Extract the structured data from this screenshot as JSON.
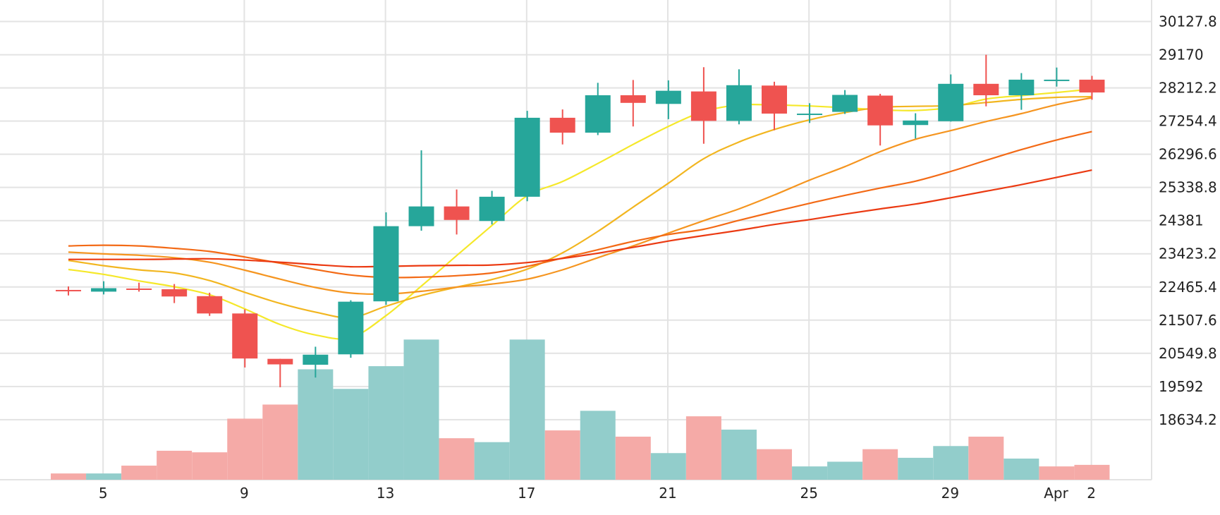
{
  "chart_data": {
    "type": "candlestick",
    "title": "",
    "xlabel": "",
    "ylabel": "",
    "ylim": [
      16900,
      30750
    ],
    "grid": true,
    "y_ticks": [
      "30127.8",
      "29170",
      "28212.2",
      "27254.4",
      "26296.6",
      "25338.8",
      "24381",
      "23423.2",
      "22465.4",
      "21507.6",
      "20549.8",
      "19592",
      "18634.2"
    ],
    "x_ticks": [
      {
        "day": 5,
        "label": "5"
      },
      {
        "day": 9,
        "label": "9"
      },
      {
        "day": 13,
        "label": "13"
      },
      {
        "day": 17,
        "label": "17"
      },
      {
        "day": 21,
        "label": "21"
      },
      {
        "day": 25,
        "label": "25"
      },
      {
        "day": 29,
        "label": "29"
      },
      {
        "day": 32,
        "label": "Apr"
      },
      {
        "day": 33,
        "label": "2"
      }
    ],
    "candles": [
      {
        "date": "Mar 4",
        "open": 22380,
        "high": 22480,
        "low": 22220,
        "close": 22370
      },
      {
        "date": "Mar 5",
        "open": 22330,
        "high": 22630,
        "low": 22250,
        "close": 22430
      },
      {
        "date": "Mar 6",
        "open": 22420,
        "high": 22590,
        "low": 22330,
        "close": 22390
      },
      {
        "date": "Mar 7",
        "open": 22400,
        "high": 22550,
        "low": 22000,
        "close": 22190
      },
      {
        "date": "Mar 8",
        "open": 22200,
        "high": 22300,
        "low": 21630,
        "close": 21700
      },
      {
        "date": "Mar 9",
        "open": 21700,
        "high": 21820,
        "low": 20140,
        "close": 20400
      },
      {
        "date": "Mar 10",
        "open": 20390,
        "high": 20390,
        "low": 19570,
        "close": 20230
      },
      {
        "date": "Mar 11",
        "open": 20220,
        "high": 20740,
        "low": 19850,
        "close": 20510
      },
      {
        "date": "Mar 12",
        "open": 20520,
        "high": 22080,
        "low": 20420,
        "close": 22040
      },
      {
        "date": "Mar 13",
        "open": 22050,
        "high": 24620,
        "low": 21950,
        "close": 24220
      },
      {
        "date": "Mar 14",
        "open": 24220,
        "high": 26410,
        "low": 24090,
        "close": 24790
      },
      {
        "date": "Mar 15",
        "open": 24790,
        "high": 25280,
        "low": 23980,
        "close": 24400
      },
      {
        "date": "Mar 16",
        "open": 24370,
        "high": 25240,
        "low": 24270,
        "close": 25070
      },
      {
        "date": "Mar 17",
        "open": 25070,
        "high": 27550,
        "low": 24940,
        "close": 27350
      },
      {
        "date": "Mar 18",
        "open": 27350,
        "high": 27590,
        "low": 26580,
        "close": 26920
      },
      {
        "date": "Mar 19",
        "open": 26920,
        "high": 28360,
        "low": 26850,
        "close": 28000
      },
      {
        "date": "Mar 20",
        "open": 28000,
        "high": 28440,
        "low": 27100,
        "close": 27780
      },
      {
        "date": "Mar 21",
        "open": 27750,
        "high": 28430,
        "low": 27310,
        "close": 28130
      },
      {
        "date": "Mar 22",
        "open": 28110,
        "high": 28810,
        "low": 26600,
        "close": 27260
      },
      {
        "date": "Mar 23",
        "open": 27260,
        "high": 28750,
        "low": 27160,
        "close": 28290
      },
      {
        "date": "Mar 24",
        "open": 28280,
        "high": 28390,
        "low": 26990,
        "close": 27470
      },
      {
        "date": "Mar 25",
        "open": 27470,
        "high": 27770,
        "low": 27200,
        "close": 27470
      },
      {
        "date": "Mar 26",
        "open": 27520,
        "high": 28150,
        "low": 27460,
        "close": 28010
      },
      {
        "date": "Mar 27",
        "open": 27990,
        "high": 28040,
        "low": 26550,
        "close": 27130
      },
      {
        "date": "Mar 28",
        "open": 27140,
        "high": 27480,
        "low": 26750,
        "close": 27270
      },
      {
        "date": "Mar 29",
        "open": 27250,
        "high": 28600,
        "low": 27240,
        "close": 28330
      },
      {
        "date": "Mar 30",
        "open": 28330,
        "high": 29170,
        "low": 27680,
        "close": 28000
      },
      {
        "date": "Mar 31",
        "open": 28000,
        "high": 28640,
        "low": 27580,
        "close": 28450
      },
      {
        "date": "Apr 1",
        "open": 28450,
        "high": 28800,
        "low": 28250,
        "close": 28450
      },
      {
        "date": "Apr 2",
        "open": 28450,
        "high": 28560,
        "low": 27870,
        "close": 28080
      }
    ],
    "volume": [
      {
        "date": "Mar 4",
        "value": 4.0,
        "direction": "down"
      },
      {
        "date": "Mar 5",
        "value": 4.0,
        "direction": "up"
      },
      {
        "date": "Mar 6",
        "value": 9.0,
        "direction": "down"
      },
      {
        "date": "Mar 7",
        "value": 18.5,
        "direction": "down"
      },
      {
        "date": "Mar 8",
        "value": 17.5,
        "direction": "down"
      },
      {
        "date": "Mar 9",
        "value": 39.0,
        "direction": "down"
      },
      {
        "date": "Mar 10",
        "value": 48.0,
        "direction": "down"
      },
      {
        "date": "Mar 11",
        "value": 70.5,
        "direction": "up"
      },
      {
        "date": "Mar 12",
        "value": 58.0,
        "direction": "up"
      },
      {
        "date": "Mar 13",
        "value": 72.5,
        "direction": "up"
      },
      {
        "date": "Mar 14",
        "value": 89.5,
        "direction": "up"
      },
      {
        "date": "Mar 15",
        "value": 26.5,
        "direction": "down"
      },
      {
        "date": "Mar 16",
        "value": 24.0,
        "direction": "up"
      },
      {
        "date": "Mar 17",
        "value": 89.5,
        "direction": "up"
      },
      {
        "date": "Mar 18",
        "value": 31.5,
        "direction": "down"
      },
      {
        "date": "Mar 19",
        "value": 44.0,
        "direction": "up"
      },
      {
        "date": "Mar 20",
        "value": 27.5,
        "direction": "down"
      },
      {
        "date": "Mar 21",
        "value": 17.0,
        "direction": "up"
      },
      {
        "date": "Mar 22",
        "value": 40.5,
        "direction": "down"
      },
      {
        "date": "Mar 23",
        "value": 32.0,
        "direction": "up"
      },
      {
        "date": "Mar 24",
        "value": 19.5,
        "direction": "down"
      },
      {
        "date": "Mar 25",
        "value": 8.5,
        "direction": "up"
      },
      {
        "date": "Mar 26",
        "value": 11.5,
        "direction": "up"
      },
      {
        "date": "Mar 27",
        "value": 19.5,
        "direction": "down"
      },
      {
        "date": "Mar 28",
        "value": 14.0,
        "direction": "up"
      },
      {
        "date": "Mar 29",
        "value": 21.5,
        "direction": "up"
      },
      {
        "date": "Mar 30",
        "value": 27.5,
        "direction": "down"
      },
      {
        "date": "Mar 31",
        "value": 13.5,
        "direction": "up"
      },
      {
        "date": "Apr 1",
        "value": 8.5,
        "direction": "down"
      },
      {
        "date": "Apr 2",
        "value": 9.5,
        "direction": "down"
      }
    ],
    "moving_averages": [
      {
        "color": "#f5e82a",
        "values": [
          22970,
          22830,
          22640,
          22470,
          22240,
          21830,
          21380,
          21080,
          21000,
          21640,
          22490,
          23370,
          24240,
          25100,
          25510,
          26030,
          26580,
          27100,
          27530,
          27720,
          27720,
          27690,
          27640,
          27580,
          27560,
          27650,
          27890,
          27990,
          28080,
          28180
        ]
      },
      {
        "color": "#f2b620",
        "values": [
          23230,
          23080,
          22960,
          22870,
          22650,
          22310,
          21990,
          21740,
          21580,
          21910,
          22220,
          22460,
          22680,
          22980,
          23450,
          24070,
          24770,
          25460,
          26170,
          26650,
          27010,
          27290,
          27500,
          27650,
          27680,
          27700,
          27790,
          27880,
          27940,
          27960
        ]
      },
      {
        "color": "#f59520",
        "values": [
          23470,
          23420,
          23380,
          23310,
          23180,
          22950,
          22690,
          22450,
          22290,
          22260,
          22340,
          22460,
          22550,
          22690,
          22960,
          23310,
          23650,
          24020,
          24380,
          24720,
          25120,
          25550,
          25940,
          26370,
          26730,
          26980,
          27240,
          27470,
          27730,
          27930
        ]
      },
      {
        "color": "#f36a16",
        "values": [
          23650,
          23670,
          23650,
          23580,
          23490,
          23330,
          23150,
          22970,
          22810,
          22740,
          22750,
          22790,
          22870,
          23060,
          23300,
          23540,
          23780,
          23980,
          24130,
          24390,
          24640,
          24880,
          25110,
          25320,
          25520,
          25800,
          26120,
          26430,
          26710,
          26950
        ]
      },
      {
        "color": "#eb3a12",
        "values": [
          23260,
          23260,
          23260,
          23270,
          23280,
          23240,
          23180,
          23110,
          23050,
          23060,
          23080,
          23090,
          23100,
          23170,
          23290,
          23440,
          23610,
          23790,
          23950,
          24100,
          24270,
          24410,
          24570,
          24720,
          24860,
          25040,
          25230,
          25420,
          25630,
          25840
        ]
      }
    ],
    "colors": {
      "up": "#26a69a",
      "down": "#ef5350",
      "up_volume": "#92cdcb",
      "down_volume": "#f5aaa7",
      "grid": "#e3e3e3"
    }
  }
}
